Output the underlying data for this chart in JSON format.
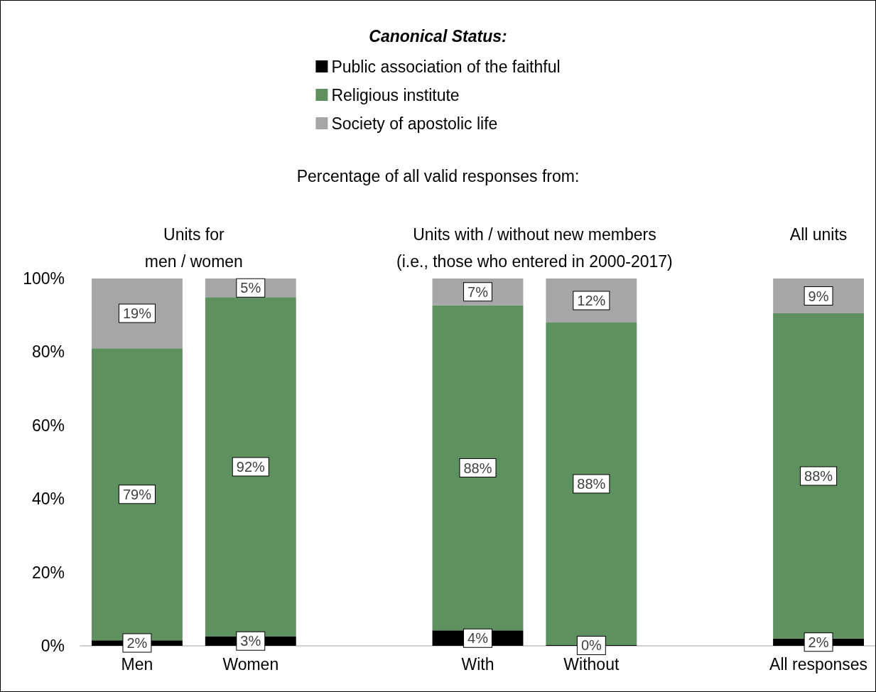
{
  "chart_data": {
    "type": "bar",
    "stacked": true,
    "legend_title": "Canonical Status:",
    "legend": "top",
    "categories": [
      "Men",
      "Women",
      null,
      "With",
      "Without",
      null,
      "All responses"
    ],
    "series": [
      {
        "name": "Public association of the faithful",
        "color": "#000000",
        "values": [
          1.5,
          2.6,
          null,
          4.2,
          0.2,
          null,
          2
        ],
        "value_labels": [
          "2%",
          "3%",
          null,
          "4%",
          "0%",
          null,
          "2%"
        ]
      },
      {
        "name": "Religious institute",
        "color": "#5f9060",
        "values": [
          79.5,
          92.3,
          null,
          88.5,
          87.8,
          null,
          88.5
        ],
        "value_labels": [
          "79%",
          "92%",
          null,
          "88%",
          "88%",
          null,
          "88%"
        ]
      },
      {
        "name": "Society of apostolic life",
        "color": "#a6a6a6",
        "values": [
          19,
          5.1,
          null,
          7.3,
          12.2,
          null,
          9.5
        ],
        "value_labels": [
          "19%",
          "5%",
          null,
          "7%",
          "12%",
          null,
          "9%"
        ]
      }
    ],
    "ylim": [
      0,
      100
    ],
    "yticks": [
      {
        "value": 0,
        "label": "0%"
      },
      {
        "value": 20,
        "label": "20%"
      },
      {
        "value": 40,
        "label": "40%"
      },
      {
        "value": 60,
        "label": "60%"
      },
      {
        "value": 80,
        "label": "80%"
      },
      {
        "value": 100,
        "label": "100%"
      }
    ],
    "grid": false,
    "annotations": [
      "Percentage of all valid responses from:",
      "Units for\nmen / women",
      "Units with / without new members\n(i.e., those who entered in 2000-2017)",
      "All units"
    ]
  }
}
